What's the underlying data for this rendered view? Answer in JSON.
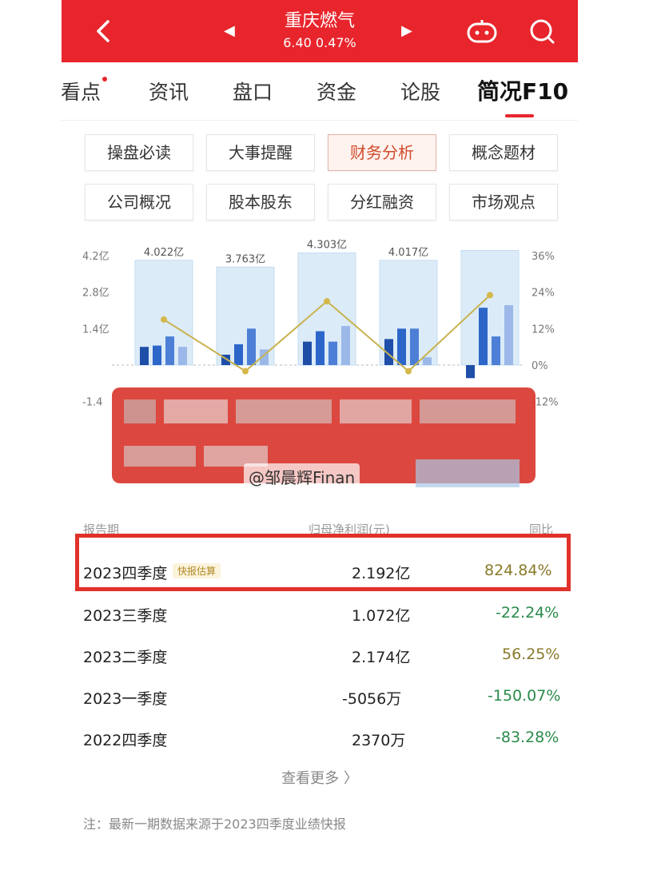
{
  "header": {
    "stock_name": "重庆燃气",
    "price_line": "6.40 0.47%"
  },
  "tabs": [
    {
      "label": "看点"
    },
    {
      "label": "资讯"
    },
    {
      "label": "盘口"
    },
    {
      "label": "资金"
    },
    {
      "label": "论股"
    },
    {
      "label": "简况F10"
    }
  ],
  "sub_buttons": [
    {
      "label": "操盘必读"
    },
    {
      "label": "大事提醒"
    },
    {
      "label": "财务分析"
    },
    {
      "label": "概念题材"
    },
    {
      "label": "公司概况"
    },
    {
      "label": "股本股东"
    },
    {
      "label": "分红融资"
    },
    {
      "label": "市场观点"
    }
  ],
  "chart_data": {
    "type": "bar",
    "y_left_ticks": [
      "4.2亿",
      "2.8亿",
      "1.4亿",
      "-1.4"
    ],
    "y_right_ticks": [
      "36%",
      "24%",
      "12%",
      "0%",
      "-12%"
    ],
    "bar_labels": [
      "4.022亿",
      "3.763亿",
      "4.303亿",
      "4.017亿",
      ""
    ],
    "totals": [
      4.022,
      3.763,
      4.303,
      4.017,
      4.4
    ],
    "inner_series": [
      [
        0.7,
        0.75,
        1.1,
        0.7
      ],
      [
        0.4,
        0.8,
        1.4,
        0.6
      ],
      [
        0.9,
        1.3,
        0.9,
        1.5
      ],
      [
        1.0,
        1.4,
        1.4,
        0.3
      ],
      [
        -0.5,
        2.2,
        1.1,
        2.3
      ]
    ],
    "growth_line": [
      15,
      -2,
      21,
      -2,
      23
    ],
    "ylim_left": [
      -1.4,
      4.2
    ],
    "ylim_right": [
      -12,
      36
    ]
  },
  "watermark": "@邹晨辉Finan",
  "table": {
    "headers": {
      "period": "报告期",
      "profit": "归母净利润(元)",
      "yoy": "同比"
    },
    "rows": [
      {
        "period": "2023四季度",
        "badge": "快报估算",
        "profit": "2.192亿",
        "yoy": "824.84%"
      },
      {
        "period": "2023三季度",
        "profit": "1.072亿",
        "yoy": "-22.24%"
      },
      {
        "period": "2023二季度",
        "profit": "2.174亿",
        "yoy": "56.25%"
      },
      {
        "period": "2023一季度",
        "profit": "-5056万",
        "yoy": "-150.07%"
      },
      {
        "period": "2022四季度",
        "profit": "2370万",
        "yoy": "-83.28%"
      }
    ],
    "more": "查看更多 〉",
    "note": "注：最新一期数据来源于2023四季度业绩快报"
  }
}
